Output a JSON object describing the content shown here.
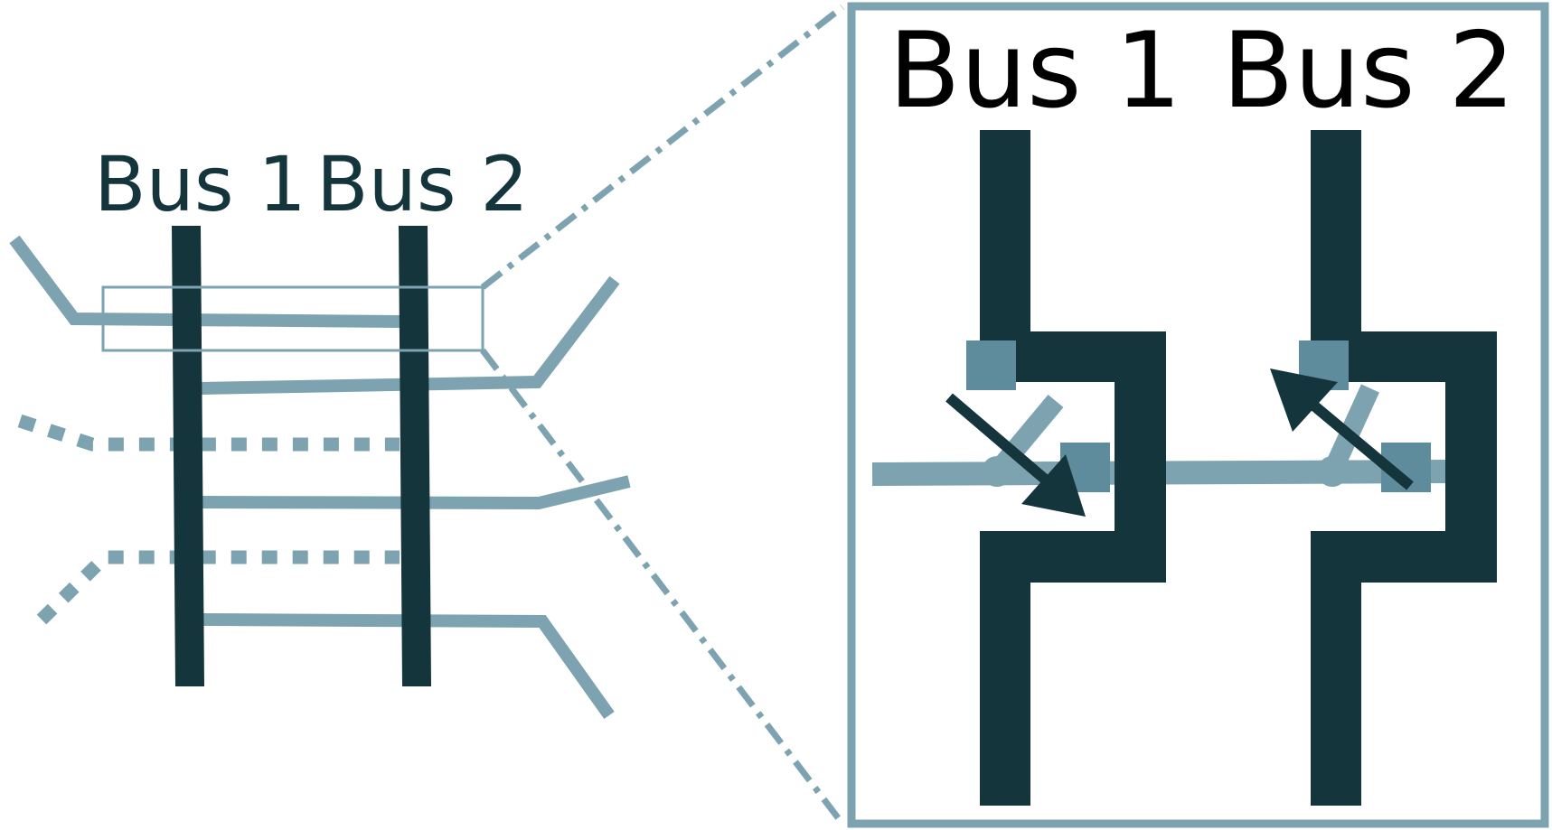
{
  "overview": {
    "bus1_label": "Bus 1",
    "bus2_label": "Bus 2"
  },
  "detail": {
    "bus1_label": "Bus 1",
    "bus2_label": "Bus 2"
  },
  "colors": {
    "bus": "#15353d",
    "line": "#7ea3b0",
    "terminal": "#5f8c9c",
    "frame": "#7ea3b0"
  }
}
